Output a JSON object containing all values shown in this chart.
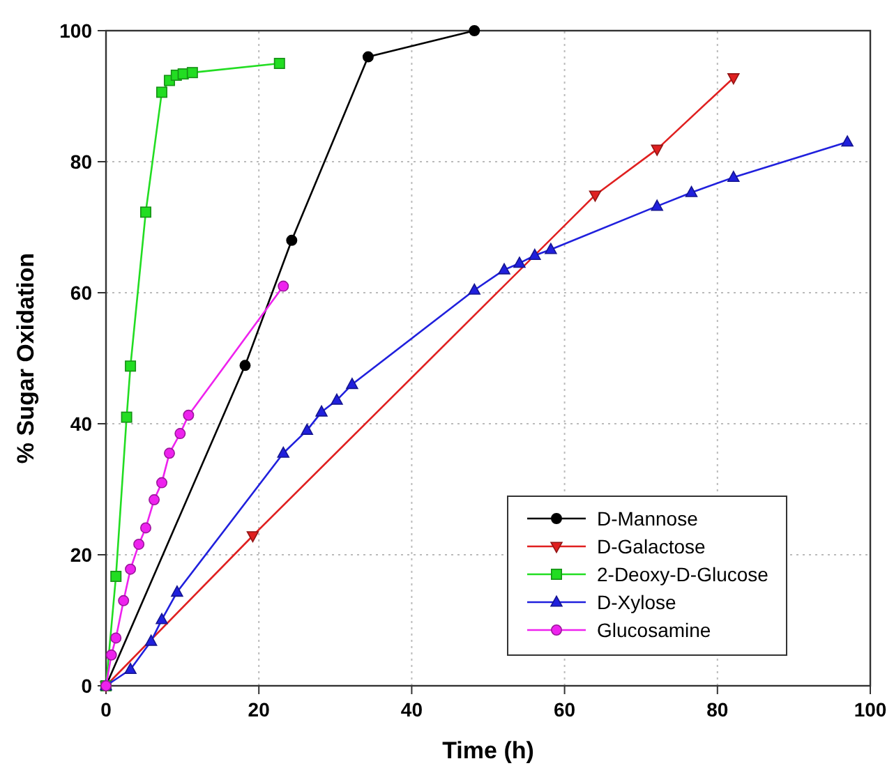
{
  "chart_data": {
    "type": "line",
    "xlabel": "Time (h)",
    "ylabel": "% Sugar Oxidation",
    "xlim": [
      0,
      100
    ],
    "ylim": [
      0,
      100
    ],
    "xticks": [
      0,
      20,
      40,
      60,
      80,
      100
    ],
    "yticks": [
      0,
      20,
      40,
      60,
      80,
      100
    ],
    "grid": true,
    "legend": "bottom right",
    "line_style": "solid",
    "series": [
      {
        "name": "D-Mannose",
        "color": "#000000",
        "marker": "circle",
        "x": [
          0,
          18.2,
          24.3,
          34.3,
          48.2
        ],
        "values": [
          0,
          48.9,
          68,
          96,
          100
        ]
      },
      {
        "name": "D-Galactose",
        "color": "#e02020",
        "marker": "triangle-down",
        "x": [
          0,
          19.2,
          64,
          72.1,
          82.1
        ],
        "values": [
          0,
          22.9,
          74.9,
          81.9,
          92.8
        ]
      },
      {
        "name": "2-Deoxy-D-Glucose",
        "color": "#22dd22",
        "marker": "square",
        "x": [
          0,
          1.3,
          2.7,
          3.2,
          5.2,
          7.3,
          8.3,
          9.2,
          10.1,
          11.3,
          22.7
        ],
        "values": [
          0,
          16.7,
          41,
          48.8,
          72.3,
          90.6,
          92.4,
          93.2,
          93.4,
          93.6,
          95
        ]
      },
      {
        "name": "D-Xylose",
        "color": "#2020dd",
        "marker": "triangle",
        "x": [
          0,
          3.2,
          5.9,
          7.3,
          9.3,
          23.2,
          26.3,
          28.2,
          30.2,
          32.2,
          48.2,
          52.1,
          54.1,
          56.1,
          58.2,
          72.1,
          76.6,
          82.1,
          97
        ],
        "values": [
          0,
          2.5,
          6.8,
          10.1,
          14.3,
          35.5,
          39,
          41.8,
          43.6,
          46,
          60.4,
          63.5,
          64.5,
          65.7,
          66.6,
          73.2,
          75.3,
          77.6,
          83
        ]
      },
      {
        "name": "Glucosamine",
        "color": "#ee22ee",
        "marker": "circle",
        "x": [
          0,
          0.7,
          1.3,
          2.3,
          3.2,
          4.3,
          5.2,
          6.3,
          7.3,
          8.3,
          9.7,
          10.8,
          23.2
        ],
        "values": [
          0,
          4.7,
          7.3,
          13,
          17.8,
          21.6,
          24.1,
          28.4,
          31,
          35.5,
          38.5,
          41.3,
          61
        ]
      }
    ]
  }
}
